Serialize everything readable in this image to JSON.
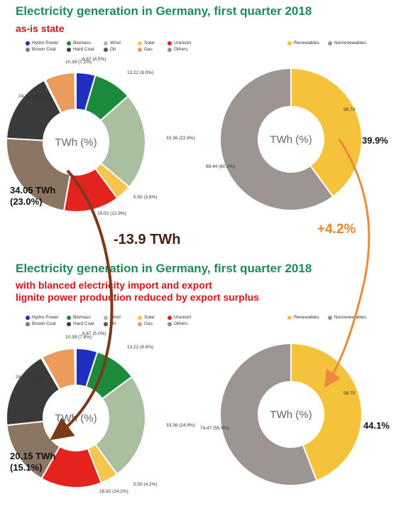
{
  "top": {
    "title": "Electricity generation in Germany, first quarter 2018",
    "subtitle_lines": [
      "as-is state"
    ]
  },
  "bottom": {
    "title": "Electricity generation in Germany, first quarter 2018",
    "subtitle_lines": [
      "with blanced electricity import and export",
      "lignite power production reduced by export surplus"
    ]
  },
  "legend_mix": [
    {
      "label": "Hydro Power",
      "color": "#1f2fbf"
    },
    {
      "label": "Biomass",
      "color": "#1c8a3a"
    },
    {
      "label": "Wind",
      "color": "#a9bfa0"
    },
    {
      "label": "Solar",
      "color": "#f5c54c"
    },
    {
      "label": "Uranium",
      "color": "#e5231e"
    },
    {
      "label": "Brown Coal",
      "color": "#8b7563"
    },
    {
      "label": "Hard Coal",
      "color": "#3a3a3a"
    },
    {
      "label": "Oil",
      "color": "#555555"
    },
    {
      "label": "Gas",
      "color": "#eb9b5b"
    },
    {
      "label": "Others",
      "color": "#8a8fa3"
    }
  ],
  "legend_share": [
    {
      "label": "Renewables",
      "color": "#f5c33b"
    },
    {
      "label": "Nonrenewables",
      "color": "#9c9591"
    }
  ],
  "center_label": "TWh (%)",
  "annotations": {
    "top_brown_coal": [
      "34.05 TWh",
      "(23.0%)"
    ],
    "bottom_brown_coal": [
      "20.15 TWh",
      "(15.1%)"
    ],
    "top_renewable_share": "39.9%",
    "bottom_renewable_share": "44.1%",
    "brown_coal_change": "-13.9 TWh",
    "renewable_change": "+4.2%"
  },
  "chart_data": [
    {
      "type": "pie",
      "title": "",
      "donut": true,
      "slices": [
        {
          "name": "Hydro Power",
          "value": 6.67,
          "label": "6.67 (4.5%)"
        },
        {
          "name": "Biomass",
          "value": 13.22,
          "label": "13.22 (9.0%)"
        },
        {
          "name": "Wind",
          "value": 33.36,
          "label": "33.36 (22.6%)"
        },
        {
          "name": "Solar",
          "value": 5.5,
          "label": "5.50 (3.8%)"
        },
        {
          "name": "Uranium",
          "value": 19.02,
          "label": "19.02 (12.9%)"
        },
        {
          "name": "Brown Coal",
          "value": 34.05,
          "label": ""
        },
        {
          "name": "Hard Coal",
          "value": 24.41,
          "label": "24.41 (16.5%)"
        },
        {
          "name": "Oil",
          "value": 0.35,
          "label": ""
        },
        {
          "name": "Gas",
          "value": 10.39,
          "label": "10.39 (7.1%)"
        },
        {
          "name": "Others",
          "value": 0.4,
          "label": ""
        }
      ]
    },
    {
      "type": "pie",
      "title": "",
      "donut": true,
      "slices": [
        {
          "name": "Renewables",
          "value": 58.74,
          "label": "58.74"
        },
        {
          "name": "Nonrenewables",
          "value": 88.44,
          "label": "88.44 (60.1%)"
        }
      ]
    },
    {
      "type": "pie",
      "title": "",
      "donut": true,
      "slices": [
        {
          "name": "Hydro Power",
          "value": 6.67,
          "label": "6.67 (5.0%)"
        },
        {
          "name": "Biomass",
          "value": 13.22,
          "label": "13.22 (9.9%)"
        },
        {
          "name": "Wind",
          "value": 33.36,
          "label": "33.36 (24.9%)"
        },
        {
          "name": "Solar",
          "value": 5.5,
          "label": "5.50 (4.2%)"
        },
        {
          "name": "Uranium",
          "value": 18.92,
          "label": "18.92 (14.2%)"
        },
        {
          "name": "Brown Coal",
          "value": 20.15,
          "label": ""
        },
        {
          "name": "Hard Coal",
          "value": 24.41,
          "label": "24.41 (18.3%)"
        },
        {
          "name": "Oil",
          "value": 0.35,
          "label": ""
        },
        {
          "name": "Gas",
          "value": 10.39,
          "label": "10.39 (7.8%)"
        },
        {
          "name": "Others",
          "value": 0.4,
          "label": ""
        }
      ]
    },
    {
      "type": "pie",
      "title": "",
      "donut": true,
      "slices": [
        {
          "name": "Renewables",
          "value": 58.75,
          "label": "58.75"
        },
        {
          "name": "Nonrenewables",
          "value": 74.47,
          "label": "74.47 (55.9%)"
        }
      ]
    }
  ]
}
